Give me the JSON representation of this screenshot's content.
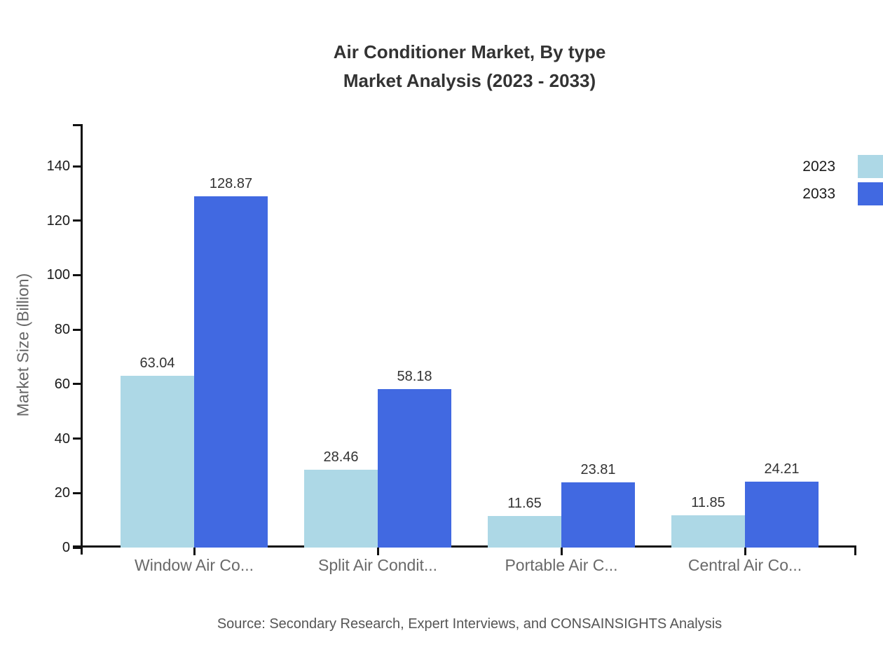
{
  "title": {
    "line1": "Air Conditioner Market, By type",
    "line2": "Market Analysis (2023 - 2033)"
  },
  "source": {
    "text": "Source: Secondary Research, Expert Interviews, and CONSAINSIGHTS Analysis"
  },
  "legend": {
    "items": [
      {
        "label": "2023",
        "color": "#ADD8E6"
      },
      {
        "label": "2033",
        "color": "#4169E1"
      }
    ]
  },
  "chart_data": {
    "type": "bar",
    "title": "Air Conditioner Market, By type Market Analysis (2023 - 2033)",
    "categories": [
      "Window Air Co...",
      "Split Air Condit...",
      "Portable Air C...",
      "Central Air Co..."
    ],
    "series": [
      {
        "name": "2023",
        "color": "#ADD8E6",
        "values": [
          63.04,
          28.46,
          11.65,
          11.85
        ]
      },
      {
        "name": "2033",
        "color": "#4169E1",
        "values": [
          128.87,
          58.18,
          23.81,
          24.21
        ]
      }
    ],
    "xlabel": "",
    "ylabel": "Market Size (Billion)",
    "ylim": [
      0,
      155
    ],
    "yticks": [
      0,
      20,
      40,
      60,
      80,
      100,
      120,
      140
    ],
    "grid": false,
    "legend_position": "top-right",
    "value_labels": true
  },
  "colors": {
    "axis": "#111111",
    "title_text": "#333333",
    "tick_text": "#1a1a1a",
    "muted_text": "#666666",
    "source_text": "#555555",
    "background": "#ffffff"
  }
}
